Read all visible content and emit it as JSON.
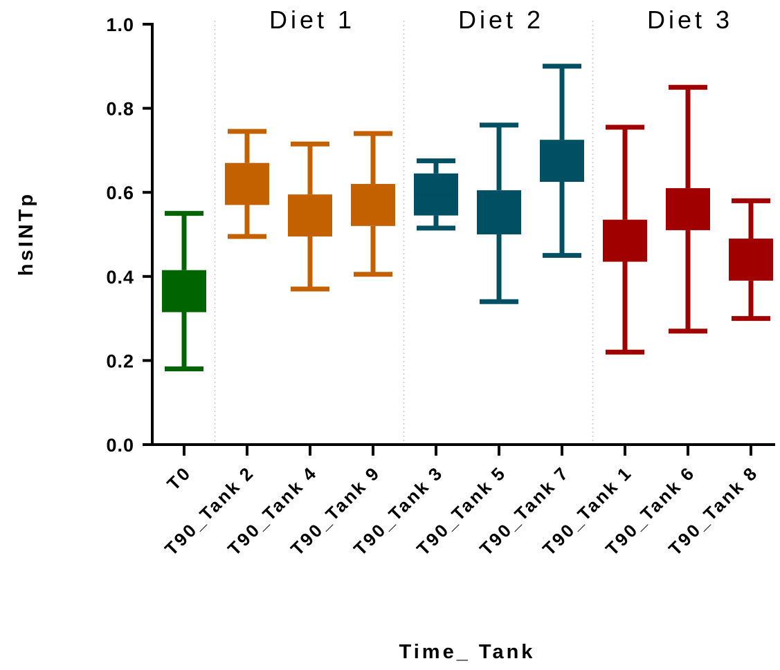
{
  "chart_data": {
    "type": "box",
    "title": "",
    "xlabel": "Time_ Tank",
    "ylabel": "hsINTp",
    "ylim": [
      0,
      1.0
    ],
    "yticks": [
      "0.0",
      "0.2",
      "0.4",
      "0.6",
      "0.8",
      "1.0"
    ],
    "ytick_values": [
      0,
      0.2,
      0.4,
      0.6,
      0.8,
      1.0
    ],
    "grid": false,
    "categories": [
      "T0",
      "T90_Tank 2",
      "T90_Tank 4",
      "T90_Tank 9",
      "T90_Tank 3",
      "T90_Tank 5",
      "T90_Tank 7",
      "T90_Tank 1",
      "T90_Tank 6",
      "T90_Tank 8"
    ],
    "groups": [
      {
        "label": "Diet 1",
        "members": [
          "T90_Tank 2",
          "T90_Tank 4",
          "T90_Tank 9"
        ]
      },
      {
        "label": "Diet 2",
        "members": [
          "T90_Tank 3",
          "T90_Tank 5",
          "T90_Tank 7"
        ]
      },
      {
        "label": "Diet 3",
        "members": [
          "T90_Tank 1",
          "T90_Tank 6",
          "T90_Tank 8"
        ]
      }
    ],
    "boxes": [
      {
        "category": "T0",
        "min": 0.18,
        "q1": 0.315,
        "median": 0.36,
        "q3": 0.415,
        "max": 0.55,
        "color": "#006400"
      },
      {
        "category": "T90_Tank 2",
        "min": 0.495,
        "q1": 0.57,
        "median": 0.62,
        "q3": 0.67,
        "max": 0.745,
        "color": "#C36100"
      },
      {
        "category": "T90_Tank 4",
        "min": 0.37,
        "q1": 0.495,
        "median": 0.54,
        "q3": 0.595,
        "max": 0.715,
        "color": "#C36100"
      },
      {
        "category": "T90_Tank 9",
        "min": 0.405,
        "q1": 0.52,
        "median": 0.57,
        "q3": 0.62,
        "max": 0.74,
        "color": "#C36100"
      },
      {
        "category": "T90_Tank 3",
        "min": 0.515,
        "q1": 0.545,
        "median": 0.595,
        "q3": 0.645,
        "max": 0.675,
        "color": "#014F62"
      },
      {
        "category": "T90_Tank 5",
        "min": 0.34,
        "q1": 0.5,
        "median": 0.55,
        "q3": 0.605,
        "max": 0.76,
        "color": "#014F62"
      },
      {
        "category": "T90_Tank 7",
        "min": 0.45,
        "q1": 0.625,
        "median": 0.675,
        "q3": 0.725,
        "max": 0.9,
        "color": "#014F62"
      },
      {
        "category": "T90_Tank 1",
        "min": 0.22,
        "q1": 0.435,
        "median": 0.485,
        "q3": 0.535,
        "max": 0.755,
        "color": "#A00000"
      },
      {
        "category": "T90_Tank 6",
        "min": 0.27,
        "q1": 0.51,
        "median": 0.56,
        "q3": 0.61,
        "max": 0.85,
        "color": "#A00000"
      },
      {
        "category": "T90_Tank 8",
        "min": 0.3,
        "q1": 0.39,
        "median": 0.44,
        "q3": 0.49,
        "max": 0.58,
        "color": "#A00000"
      }
    ]
  }
}
